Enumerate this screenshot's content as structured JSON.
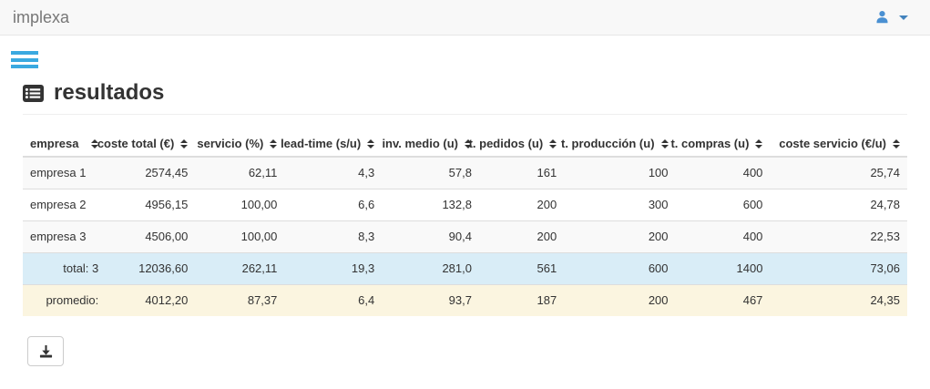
{
  "navbar": {
    "brand": "implexa",
    "user_icon": "user-icon",
    "dropdown_icon": "caret-down-icon"
  },
  "menu": {
    "hamburger_icon": "bars-icon"
  },
  "page": {
    "title": "resultados",
    "title_icon": "list-alt-icon"
  },
  "table": {
    "columns": [
      {
        "label": "empresa",
        "align": "left",
        "width": "9.4%"
      },
      {
        "label": "coste total (€)",
        "align": "right",
        "width": "10.1%"
      },
      {
        "label": "servicio (%)",
        "align": "right",
        "width": "10.1%"
      },
      {
        "label": "lead-time (s/u)",
        "align": "right",
        "width": "11.0%"
      },
      {
        "label": "inv. medio (u)",
        "align": "right",
        "width": "11.0%"
      },
      {
        "label": "t. pedidos (u)",
        "align": "right",
        "width": "9.6%"
      },
      {
        "label": "t. producción (u)",
        "align": "right",
        "width": "12.6%"
      },
      {
        "label": "t. compras (u)",
        "align": "right",
        "width": "10.7%"
      },
      {
        "label": "coste servicio (€/u)",
        "align": "right",
        "width": "15.5%"
      }
    ],
    "sort_icon": "sort-icon",
    "rows": [
      {
        "type": "data",
        "cells": [
          "empresa 1",
          "2574,45",
          "62,11",
          "4,3",
          "57,8",
          "161",
          "100",
          "400",
          "25,74"
        ]
      },
      {
        "type": "data",
        "cells": [
          "empresa 2",
          "4956,15",
          "100,00",
          "6,6",
          "132,8",
          "200",
          "300",
          "600",
          "24,78"
        ]
      },
      {
        "type": "data",
        "cells": [
          "empresa 3",
          "4506,00",
          "100,00",
          "8,3",
          "90,4",
          "200",
          "200",
          "400",
          "22,53"
        ]
      },
      {
        "type": "total",
        "cells": [
          "total: 3",
          "12036,60",
          "262,11",
          "19,3",
          "281,0",
          "561",
          "600",
          "1400",
          "73,06"
        ]
      },
      {
        "type": "average",
        "cells": [
          "promedio:",
          "4012,20",
          "87,37",
          "6,4",
          "93,7",
          "187",
          "200",
          "467",
          "24,35"
        ]
      }
    ]
  },
  "toolbar": {
    "download_icon": "download-icon"
  },
  "colors": {
    "navbar_bg": "#f8f8f8",
    "navbar_border": "#e7e7e7",
    "brand_text": "#777777",
    "hamburger_blue": "#3aa9e0",
    "user_blue": "#4a90d2",
    "text": "#333333",
    "row_striped": "#f9f9f9",
    "row_total": "#d9edf7",
    "row_average": "#fbf5e0",
    "table_border": "#dddddd"
  }
}
